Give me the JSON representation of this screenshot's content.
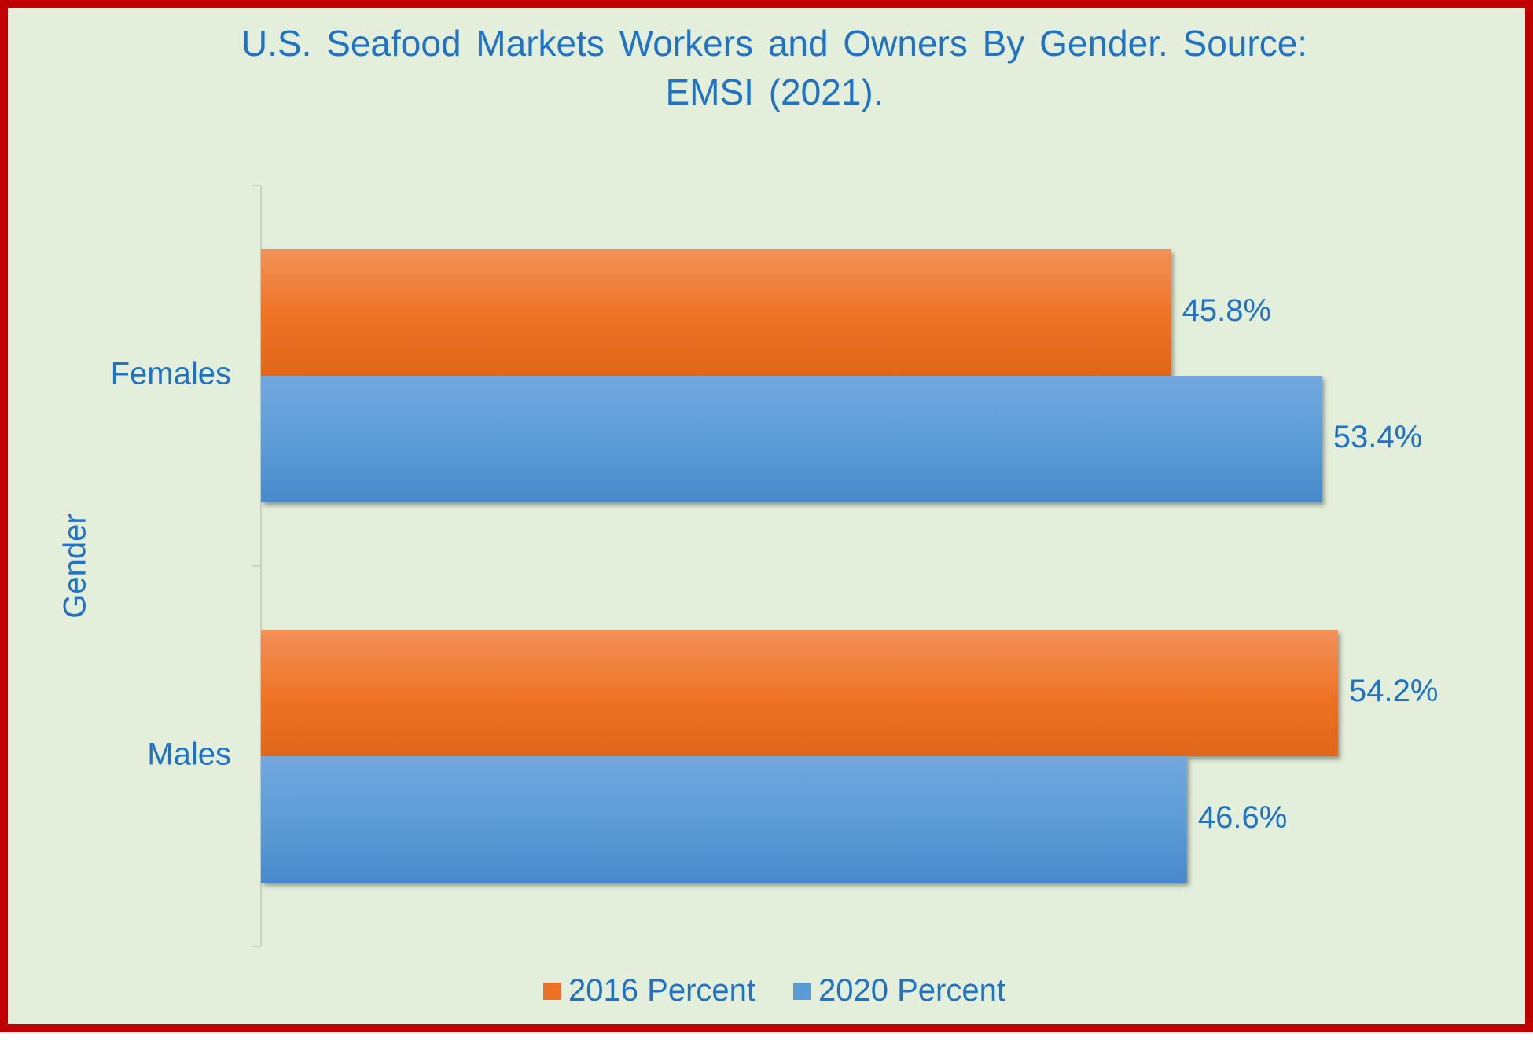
{
  "chart_data": {
    "type": "bar",
    "orientation": "horizontal",
    "title_lines": [
      "U.S. Seafood Markets Workers and Owners By Gender. Source:",
      "EMSI (2021)."
    ],
    "ylabel": "Gender",
    "xlabel": "",
    "categories": [
      "Females",
      "Males"
    ],
    "series": [
      {
        "name": "2016 Percent",
        "values": [
          45.8,
          54.2
        ],
        "labels": [
          "45.8%",
          "54.2%"
        ],
        "color": "#ee7224",
        "color_light": "#f29158",
        "color_dark": "#e0661b"
      },
      {
        "name": "2020 Percent",
        "values": [
          53.4,
          46.6
        ],
        "labels": [
          "53.4%",
          "46.6%"
        ],
        "color": "#5b9bd5",
        "color_light": "#72a8e0",
        "color_dark": "#4889cc"
      }
    ],
    "xlim": [
      0,
      60
    ],
    "grid": false,
    "legend_position": "bottom"
  }
}
